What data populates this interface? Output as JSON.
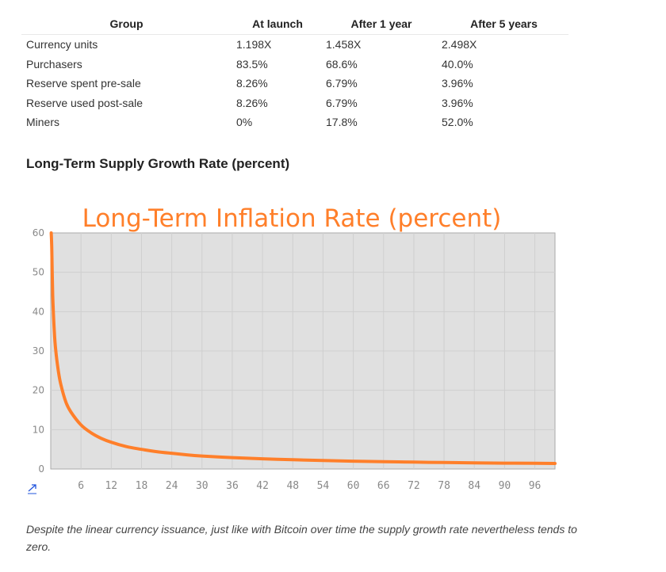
{
  "table": {
    "headers": [
      "Group",
      "At launch",
      "After 1 year",
      "After 5 years"
    ],
    "rows": [
      [
        "Currency units",
        "1.198X",
        "1.458X",
        "2.498X"
      ],
      [
        "Purchasers",
        "83.5%",
        "68.6%",
        "40.0%"
      ],
      [
        "Reserve spent pre-sale",
        "8.26%",
        "6.79%",
        "3.96%"
      ],
      [
        "Reserve used post-sale",
        "8.26%",
        "6.79%",
        "3.96%"
      ],
      [
        "Miners",
        "0%",
        "17.8%",
        "52.0%"
      ]
    ]
  },
  "section_heading": "Long-Term Supply Growth Rate (percent)",
  "chart_link_icon": "external-link-icon",
  "chart_data": {
    "type": "line",
    "title": "Long-Term Inflation Rate (percent)",
    "xlabel": "",
    "ylabel": "",
    "xlim": [
      0,
      100
    ],
    "ylim": [
      0,
      60
    ],
    "x_ticks": [
      6,
      12,
      18,
      24,
      30,
      36,
      42,
      48,
      54,
      60,
      66,
      72,
      78,
      84,
      90,
      96
    ],
    "y_ticks": [
      0,
      10,
      20,
      30,
      40,
      50,
      60
    ],
    "grid": true,
    "series": [
      {
        "color": "#ff7f2a",
        "x": [
          0.1,
          0.2,
          0.4,
          0.7,
          1,
          1.5,
          2,
          3,
          4,
          6,
          8,
          10,
          12,
          15,
          18,
          21,
          24,
          27,
          30,
          36,
          42,
          48,
          54,
          60,
          66,
          72,
          78,
          84,
          90,
          96,
          100
        ],
        "y": [
          60,
          56,
          44,
          35,
          30,
          25,
          21.5,
          17,
          14.5,
          11.2,
          9.2,
          7.8,
          6.8,
          5.7,
          5.0,
          4.4,
          4.0,
          3.6,
          3.3,
          2.9,
          2.6,
          2.35,
          2.15,
          2.0,
          1.85,
          1.75,
          1.65,
          1.58,
          1.5,
          1.45,
          1.4
        ]
      }
    ],
    "colors": {
      "plot_bg": "#e0e0e0",
      "grid": "#cfcfcf",
      "axis_text": "#888888",
      "title": "#ff7f2a"
    }
  },
  "caption": "Despite the linear currency issuance, just like with Bitcoin over time the supply growth rate nevertheless tends to zero."
}
